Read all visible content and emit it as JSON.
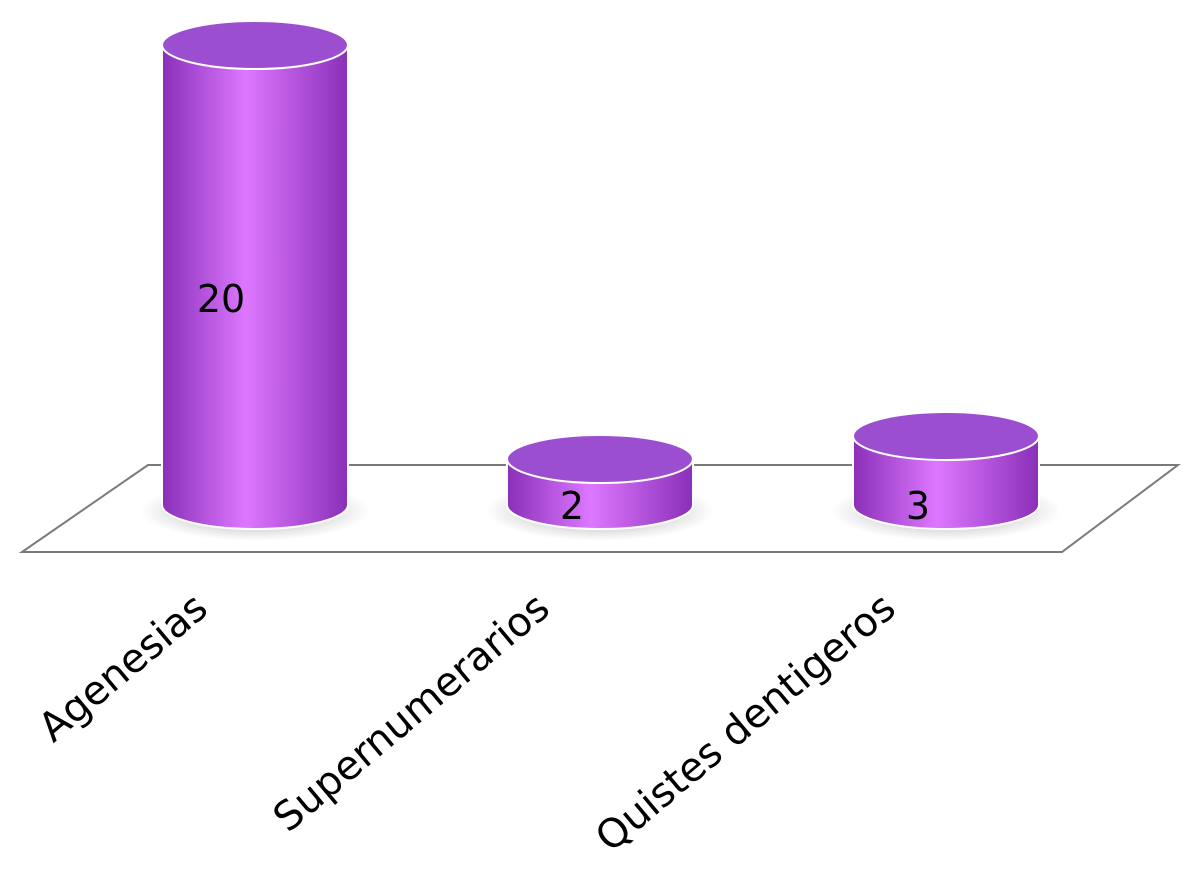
{
  "chart_data": {
    "type": "bar",
    "style": "3d-cylinder",
    "categories": [
      "Agenesias",
      "Supernumerarios",
      "Quistes dentigeros"
    ],
    "values": [
      20,
      2,
      3
    ],
    "data_labels": [
      "20",
      "2",
      "3"
    ],
    "title": "",
    "xlabel": "",
    "ylabel": "",
    "ylim": [
      0,
      20
    ],
    "grid": false,
    "legend": "none",
    "colors": {
      "bar_body": "#c04bf0",
      "bar_highlight": "#dd77ff",
      "bar_shadow": "#8a2fb8",
      "bar_top": "#9b4fd0",
      "floor_stroke": "#7a7a7a"
    }
  }
}
